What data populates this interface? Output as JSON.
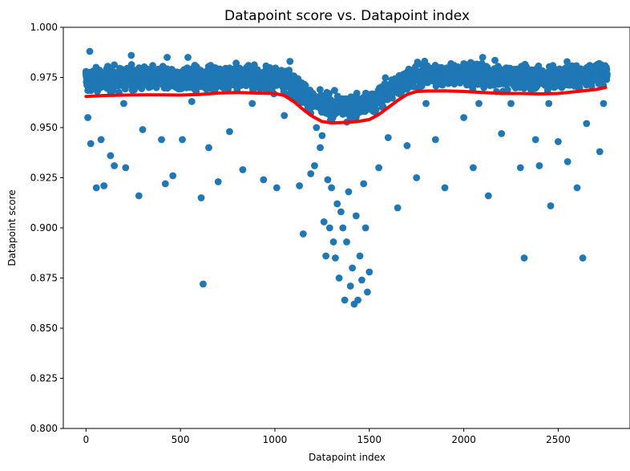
{
  "chart_data": {
    "type": "scatter",
    "title": "Datapoint score vs. Datapoint index",
    "xlabel": "Datapoint index",
    "ylabel": "Datapoint score",
    "xlim": [
      -120,
      2880
    ],
    "ylim": [
      0.8,
      1.0
    ],
    "x_ticks": [
      0,
      500,
      1000,
      1500,
      2000,
      2500
    ],
    "y_ticks": [
      0.8,
      0.825,
      0.85,
      0.875,
      0.9,
      0.925,
      0.95,
      0.975,
      1.0
    ],
    "x_tick_labels": [
      "0",
      "500",
      "1000",
      "1500",
      "2000",
      "2500"
    ],
    "y_tick_labels": [
      "0.800",
      "0.825",
      "0.850",
      "0.875",
      "0.900",
      "0.925",
      "0.950",
      "0.975",
      "1.000"
    ],
    "grid": false,
    "legend": "none",
    "colors": {
      "points": "#1f77b4",
      "trend": "#ff0000"
    },
    "series": [
      {
        "kind": "scatter",
        "x": [
          0,
          10,
          20,
          25,
          40,
          55,
          60,
          80,
          95,
          130,
          150,
          200,
          210,
          240,
          280,
          300,
          340,
          400,
          420,
          430,
          460,
          510,
          540,
          560,
          610,
          620,
          650,
          660,
          700,
          760,
          800,
          830,
          860,
          880,
          940,
          1010,
          1050,
          1080,
          1130,
          1150,
          1190,
          1210,
          1220,
          1240,
          1250,
          1260,
          1270,
          1280,
          1290,
          1300,
          1310,
          1320,
          1330,
          1340,
          1350,
          1360,
          1370,
          1380,
          1390,
          1400,
          1410,
          1420,
          1430,
          1440,
          1450,
          1460,
          1470,
          1480,
          1490,
          1500,
          1550,
          1600,
          1650,
          1700,
          1750,
          1800,
          1850,
          1900,
          1950,
          2000,
          2050,
          2080,
          2100,
          2130,
          2200,
          2250,
          2300,
          2320,
          2380,
          2400,
          2450,
          2460,
          2500,
          2550,
          2600,
          2630,
          2650,
          2700,
          2720,
          2740
        ],
        "y": [
          0.978,
          0.955,
          0.988,
          0.942,
          0.973,
          0.92,
          0.968,
          0.944,
          0.921,
          0.936,
          0.931,
          0.962,
          0.93,
          0.986,
          0.916,
          0.949,
          0.977,
          0.944,
          0.922,
          0.985,
          0.926,
          0.944,
          0.985,
          0.963,
          0.915,
          0.872,
          0.94,
          0.981,
          0.923,
          0.948,
          0.969,
          0.929,
          0.981,
          0.962,
          0.924,
          0.92,
          0.956,
          0.983,
          0.921,
          0.897,
          0.927,
          0.931,
          0.95,
          0.94,
          0.946,
          0.903,
          0.886,
          0.924,
          0.9,
          0.92,
          0.893,
          0.885,
          0.912,
          0.875,
          0.908,
          0.9,
          0.864,
          0.893,
          0.918,
          0.871,
          0.88,
          0.862,
          0.906,
          0.864,
          0.886,
          0.874,
          0.922,
          0.9,
          0.868,
          0.878,
          0.93,
          0.945,
          0.91,
          0.941,
          0.925,
          0.962,
          0.944,
          0.92,
          0.981,
          0.955,
          0.93,
          0.962,
          0.985,
          0.916,
          0.947,
          0.962,
          0.93,
          0.885,
          0.944,
          0.931,
          0.962,
          0.911,
          0.943,
          0.933,
          0.92,
          0.885,
          0.952,
          0.977,
          0.938,
          0.962
        ]
      },
      {
        "kind": "line",
        "x": [
          0,
          100,
          200,
          300,
          400,
          500,
          600,
          700,
          800,
          900,
          1000,
          1050,
          1100,
          1150,
          1200,
          1250,
          1300,
          1350,
          1400,
          1450,
          1500,
          1550,
          1600,
          1650,
          1700,
          1750,
          1800,
          1900,
          2000,
          2100,
          2200,
          2300,
          2400,
          2500,
          2600,
          2700,
          2750
        ],
        "y": [
          0.9655,
          0.966,
          0.9662,
          0.9663,
          0.9663,
          0.9662,
          0.9665,
          0.9672,
          0.9675,
          0.9672,
          0.967,
          0.966,
          0.963,
          0.959,
          0.9555,
          0.953,
          0.9523,
          0.9525,
          0.9527,
          0.9532,
          0.954,
          0.9565,
          0.96,
          0.9635,
          0.9665,
          0.968,
          0.9682,
          0.9683,
          0.968,
          0.9675,
          0.967,
          0.967,
          0.9668,
          0.967,
          0.968,
          0.969,
          0.97
        ]
      }
    ]
  }
}
